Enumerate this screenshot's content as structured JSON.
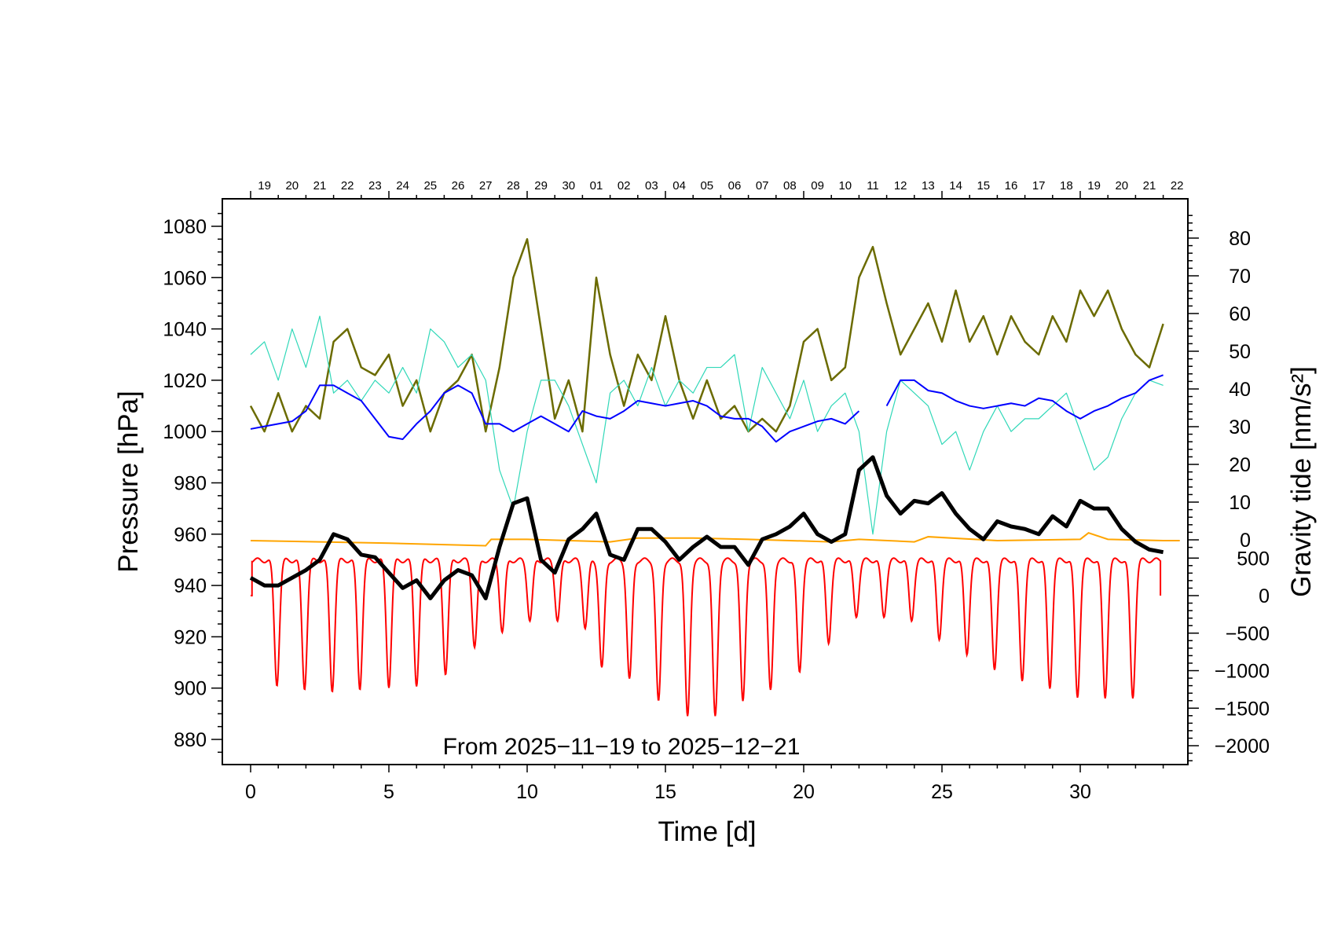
{
  "chart_data": {
    "type": "line",
    "annotation": "From 2025−11−19 to 2025−12−21",
    "xlabel": "Time [d]",
    "ylabel_left": "Pressure [hPa]",
    "ylabel_right": "Gravity tide [nm/s²]",
    "xlim": [
      0,
      34
    ],
    "x_ticks": [
      0,
      5,
      10,
      15,
      20,
      25,
      30
    ],
    "ylim_left": [
      875,
      1085
    ],
    "y_ticks_left": [
      880,
      900,
      920,
      940,
      960,
      980,
      1000,
      1020,
      1040,
      1060,
      1080
    ],
    "y_ticks_right_upper": [
      0,
      10,
      20,
      30,
      40,
      50,
      60,
      70,
      80
    ],
    "y_ticks_right_lower": [
      -2000,
      -1500,
      -1000,
      -500,
      0,
      500
    ],
    "top_date_labels": [
      "19",
      "20",
      "21",
      "22",
      "23",
      "24",
      "25",
      "26",
      "27",
      "28",
      "29",
      "30",
      "01",
      "02",
      "03",
      "04",
      "05",
      "06",
      "07",
      "08",
      "09",
      "10",
      "11",
      "12",
      "13",
      "14",
      "15",
      "16",
      "17",
      "18",
      "19",
      "20",
      "21",
      "22"
    ],
    "grid": false,
    "x_step": 0.5,
    "series": [
      {
        "color": "#6b6b00",
        "axis": "left",
        "values": [
          1010,
          1000,
          1015,
          1000,
          1010,
          1005,
          1035,
          1040,
          1025,
          1022,
          1030,
          1010,
          1020,
          1000,
          1015,
          1020,
          1030,
          1000,
          1025,
          1060,
          1075,
          1040,
          1005,
          1020,
          1000,
          1060,
          1030,
          1010,
          1030,
          1020,
          1045,
          1020,
          1005,
          1020,
          1005,
          1010,
          1000,
          1005,
          1000,
          1010,
          1035,
          1040,
          1020,
          1025,
          1060,
          1072,
          1050,
          1030,
          1040,
          1050,
          1035,
          1055,
          1035,
          1045,
          1030,
          1045,
          1035,
          1030,
          1045,
          1035,
          1055,
          1045,
          1055,
          1040,
          1030,
          1025,
          1042
        ]
      },
      {
        "color": "#30d8b8",
        "axis": "left",
        "values": [
          1030,
          1035,
          1020,
          1040,
          1025,
          1045,
          1015,
          1020,
          1012,
          1020,
          1015,
          1025,
          1015,
          1040,
          1035,
          1025,
          1030,
          1020,
          985,
          970,
          1000,
          1020,
          1020,
          1010,
          995,
          980,
          1015,
          1020,
          1010,
          1025,
          1010,
          1020,
          1015,
          1025,
          1025,
          1030,
          1000,
          1025,
          1015,
          1005,
          1020,
          1000,
          1010,
          1015,
          1000,
          960,
          1000,
          1020,
          1015,
          1010,
          995,
          1000,
          985,
          1000,
          1010,
          1000,
          1005,
          1005,
          1010,
          1015,
          1000,
          985,
          990,
          1005,
          1015,
          1020,
          1018
        ]
      },
      {
        "color": "#0000ff",
        "axis": "left",
        "values": [
          1001,
          1002,
          1003,
          1004,
          1008,
          1018,
          1018,
          1015,
          1012,
          1005,
          998,
          997,
          1003,
          1008,
          1015,
          1018,
          1015,
          1003,
          1003,
          1000,
          1003,
          1006,
          1003,
          1000,
          1008,
          1006,
          1005,
          1008,
          1012,
          1011,
          1010,
          1011,
          1012,
          1010,
          1006,
          1005,
          1005,
          1002,
          996,
          1000,
          1002,
          1004,
          1005,
          1003,
          1008,
          null,
          1010,
          1020,
          1020,
          1016,
          1015,
          1012,
          1010,
          1009,
          1010,
          1011,
          1010,
          1013,
          1012,
          1008,
          1005,
          1008,
          1010,
          1013,
          1015,
          1020,
          1022
        ]
      },
      {
        "color": "#000000",
        "axis": "left",
        "values": [
          943,
          940,
          940,
          943,
          946,
          950,
          960,
          958,
          952,
          951,
          945,
          939,
          942,
          935,
          942,
          946,
          944,
          935,
          955,
          972,
          974,
          950,
          945,
          958,
          962,
          968,
          952,
          950,
          962,
          962,
          957,
          950,
          955,
          959,
          955,
          955,
          948,
          958,
          960,
          963,
          968,
          960,
          957,
          960,
          985,
          990,
          975,
          968,
          973,
          972,
          976,
          968,
          962,
          958,
          965,
          963,
          962,
          960,
          967,
          963,
          973,
          970,
          970,
          962,
          957,
          954,
          953
        ]
      }
    ],
    "orange_series": {
      "color": "#ffa500",
      "axis": "left",
      "points": [
        [
          0,
          957.5
        ],
        [
          5,
          956.5
        ],
        [
          8.5,
          955.5
        ],
        [
          8.7,
          958
        ],
        [
          10,
          958
        ],
        [
          13,
          957
        ],
        [
          14,
          958.5
        ],
        [
          16,
          958.5
        ],
        [
          18,
          958
        ],
        [
          21,
          957
        ],
        [
          22,
          958
        ],
        [
          24,
          957
        ],
        [
          24.5,
          959
        ],
        [
          27,
          957.5
        ],
        [
          30,
          958
        ],
        [
          30.3,
          960.5
        ],
        [
          31,
          958
        ],
        [
          33,
          957.5
        ],
        [
          33.6,
          957.5
        ]
      ]
    },
    "tide_series": {
      "color": "#ff0000",
      "axis": "right-lower",
      "max": 500,
      "start": [
        0,
        0
      ],
      "end": [
        32.9,
        0
      ],
      "minima": [
        [
          0.95,
          -1150
        ],
        [
          1.95,
          -1200
        ],
        [
          2.95,
          -1230
        ],
        [
          3.95,
          -1200
        ],
        [
          5.0,
          -1170
        ],
        [
          6.0,
          -1150
        ],
        [
          7.05,
          -1000
        ],
        [
          8.1,
          -650
        ],
        [
          9.1,
          -450
        ],
        [
          10.1,
          -300
        ],
        [
          11.1,
          -300
        ],
        [
          12.1,
          -400
        ],
        [
          12.7,
          -950
        ],
        [
          13.7,
          -1100
        ],
        [
          14.75,
          -1400
        ],
        [
          15.8,
          -1600
        ],
        [
          16.8,
          -1600
        ],
        [
          17.8,
          -1400
        ],
        [
          18.8,
          -1250
        ],
        [
          19.85,
          -1000
        ],
        [
          20.9,
          -600
        ],
        [
          21.9,
          -250
        ],
        [
          22.9,
          -250
        ],
        [
          23.9,
          -300
        ],
        [
          24.9,
          -550
        ],
        [
          25.9,
          -750
        ],
        [
          26.9,
          -950
        ],
        [
          27.9,
          -1100
        ],
        [
          28.9,
          -1200
        ],
        [
          29.9,
          -1320
        ],
        [
          30.9,
          -1330
        ],
        [
          31.9,
          -1330
        ]
      ]
    }
  }
}
